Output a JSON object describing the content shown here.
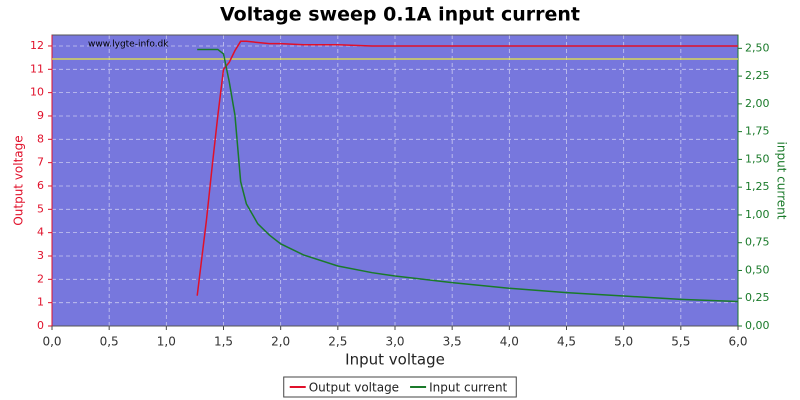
{
  "chart_data": {
    "type": "line",
    "title": "Voltage sweep 0.1A input current",
    "annotation": "www.lygte-info.dk",
    "x_label": "Input voltage",
    "y_label": "Output voltage",
    "y2_label": "input current",
    "x": [
      1.27,
      1.3,
      1.35,
      1.4,
      1.45,
      1.5,
      1.55,
      1.6,
      1.65,
      1.7,
      1.8,
      1.9,
      2.0,
      2.2,
      2.5,
      2.8,
      3.0,
      3.5,
      4.0,
      4.5,
      5.0,
      5.5,
      6.0
    ],
    "series": [
      {
        "name": "Output voltage",
        "color": "#e0102a",
        "axis": "y",
        "values": [
          1.3,
          2.5,
          4.5,
          6.8,
          9.0,
          11.0,
          11.3,
          11.8,
          12.2,
          12.2,
          12.15,
          12.1,
          12.1,
          12.05,
          12.05,
          12.0,
          12.0,
          12.0,
          12.0,
          12.0,
          12.0,
          12.0,
          12.0
        ]
      },
      {
        "name": "Input current",
        "color": "#1a7a2a",
        "axis": "y2",
        "values": [
          2.49,
          2.49,
          2.49,
          2.49,
          2.49,
          2.45,
          2.2,
          1.9,
          1.3,
          1.1,
          0.92,
          0.82,
          0.74,
          0.64,
          0.54,
          0.48,
          0.45,
          0.39,
          0.34,
          0.3,
          0.27,
          0.24,
          0.22
        ]
      }
    ],
    "reference_line": {
      "value": 11.44,
      "color": "#e8e840"
    },
    "xlim": [
      0,
      6
    ],
    "xticks": [
      {
        "value": 0,
        "label": "0,0"
      },
      {
        "value": 0.5,
        "label": "0,5"
      },
      {
        "value": 1,
        "label": "1,0"
      },
      {
        "value": 1.5,
        "label": "1,5"
      },
      {
        "value": 2,
        "label": "2,0"
      },
      {
        "value": 2.5,
        "label": "2,5"
      },
      {
        "value": 3,
        "label": "3,0"
      },
      {
        "value": 3.5,
        "label": "3,5"
      },
      {
        "value": 4,
        "label": "4,0"
      },
      {
        "value": 4.5,
        "label": "4,5"
      },
      {
        "value": 5,
        "label": "5,0"
      },
      {
        "value": 5.5,
        "label": "5,5"
      },
      {
        "value": 6,
        "label": "6,0"
      }
    ],
    "ylim": [
      0,
      12.47
    ],
    "yticks": [
      0,
      1,
      2,
      3,
      4,
      5,
      6,
      7,
      8,
      9,
      10,
      11,
      12
    ],
    "y2lim": [
      0,
      2.62
    ],
    "y2ticks": [
      {
        "value": 0,
        "label": "0,00"
      },
      {
        "value": 0.25,
        "label": "0,25"
      },
      {
        "value": 0.5,
        "label": "0,50"
      },
      {
        "value": 0.75,
        "label": "0,75"
      },
      {
        "value": 1,
        "label": "1,00"
      },
      {
        "value": 1.25,
        "label": "1,25"
      },
      {
        "value": 1.5,
        "label": "1,50"
      },
      {
        "value": 1.75,
        "label": "1,75"
      },
      {
        "value": 2,
        "label": "2,00"
      },
      {
        "value": 2.25,
        "label": "2,25"
      },
      {
        "value": 2.5,
        "label": "2,50"
      }
    ],
    "grid": true,
    "plot_background": "#7777dd",
    "legend": "bottom"
  }
}
